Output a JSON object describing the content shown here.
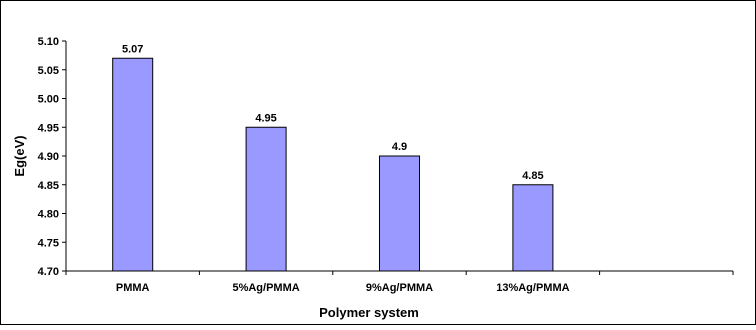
{
  "chart_data": {
    "type": "bar",
    "categories": [
      "PMMA",
      "5%Ag/PMMA",
      "9%Ag/PMMA",
      "13%Ag/PMMA",
      ""
    ],
    "values": [
      5.07,
      4.95,
      4.9,
      4.85,
      null
    ],
    "data_labels": [
      "5.07",
      "4.95",
      "4.9",
      "4.85",
      ""
    ],
    "xlabel": "Polymer system",
    "ylabel": "Eg(eV)",
    "ylim": [
      4.7,
      5.1
    ],
    "yticks": [
      "4.70",
      "4.75",
      "4.80",
      "4.85",
      "4.90",
      "4.95",
      "5.00",
      "5.05",
      "5.10"
    ],
    "grid": false,
    "legend": "none",
    "colors": {
      "bar_fill": "#9999ff",
      "bar_stroke": "#000000",
      "axis": "#000000",
      "frame": "#000000"
    }
  }
}
